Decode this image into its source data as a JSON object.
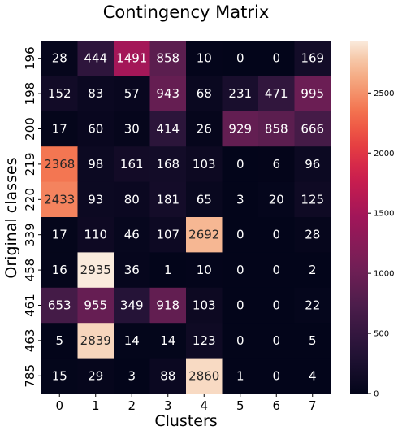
{
  "chart_data": {
    "type": "heatmap",
    "title": "Contingency Matrix",
    "xlabel": "Clusters",
    "ylabel": "Original classes",
    "x_categories": [
      "0",
      "1",
      "2",
      "3",
      "4",
      "5",
      "6",
      "7"
    ],
    "y_categories": [
      "196",
      "198",
      "200",
      "219",
      "220",
      "339",
      "458",
      "461",
      "463",
      "785"
    ],
    "values": [
      [
        28,
        444,
        1491,
        858,
        10,
        0,
        0,
        169
      ],
      [
        152,
        83,
        57,
        943,
        68,
        231,
        471,
        995
      ],
      [
        17,
        60,
        30,
        414,
        26,
        929,
        858,
        666
      ],
      [
        2368,
        98,
        161,
        168,
        103,
        0,
        6,
        96
      ],
      [
        2433,
        93,
        80,
        181,
        65,
        3,
        20,
        125
      ],
      [
        17,
        110,
        46,
        107,
        2692,
        0,
        0,
        28
      ],
      [
        16,
        2935,
        36,
        1,
        10,
        0,
        0,
        2
      ],
      [
        653,
        955,
        349,
        918,
        103,
        0,
        0,
        22
      ],
      [
        5,
        2839,
        14,
        14,
        123,
        0,
        0,
        5
      ],
      [
        15,
        29,
        3,
        88,
        2860,
        1,
        0,
        4
      ]
    ],
    "colorbar": {
      "min": 0,
      "max": 2935,
      "ticks": [
        0,
        500,
        1000,
        1500,
        2000,
        2500
      ],
      "colormap": "rocket"
    }
  }
}
